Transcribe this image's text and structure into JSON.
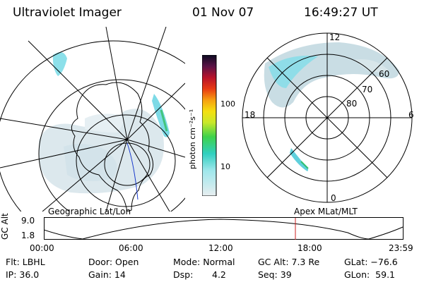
{
  "header": {
    "instrument": "Ultraviolet Imager",
    "date": "01 Nov 07",
    "time": "16:49:27 UT"
  },
  "colorbar": {
    "label": "photon cm⁻²s⁻¹",
    "ticks": [
      "100",
      "10"
    ]
  },
  "polar_plot": {
    "clock_labels": [
      "12",
      "18",
      "6",
      "0"
    ],
    "lat_labels": [
      "60",
      "70",
      "80"
    ]
  },
  "coord_labels": {
    "left": "Geographic Lat/Lon",
    "right": "Apex MLat/MLT"
  },
  "altitude_plot": {
    "ylabel": "GC Alt",
    "yticks": [
      "9.0",
      "1.8"
    ],
    "xticks": [
      "00:00",
      "06:00",
      "12:00",
      "18:00",
      "23:59"
    ],
    "marker_color": "#cc2222"
  },
  "info": {
    "flt": "Flt: LBHL",
    "ip": "IP: 36.0",
    "door": "Door: Open",
    "gain": "Gain: 14",
    "mode": "Mode: Normal",
    "dsp_label": "Dsp:",
    "dsp_value": "4.2",
    "gc_alt": "GC Alt: 7.3 Re",
    "seq": "Seq: 39",
    "glat": "GLat: −76.6",
    "glon": "GLon:  59.1"
  }
}
